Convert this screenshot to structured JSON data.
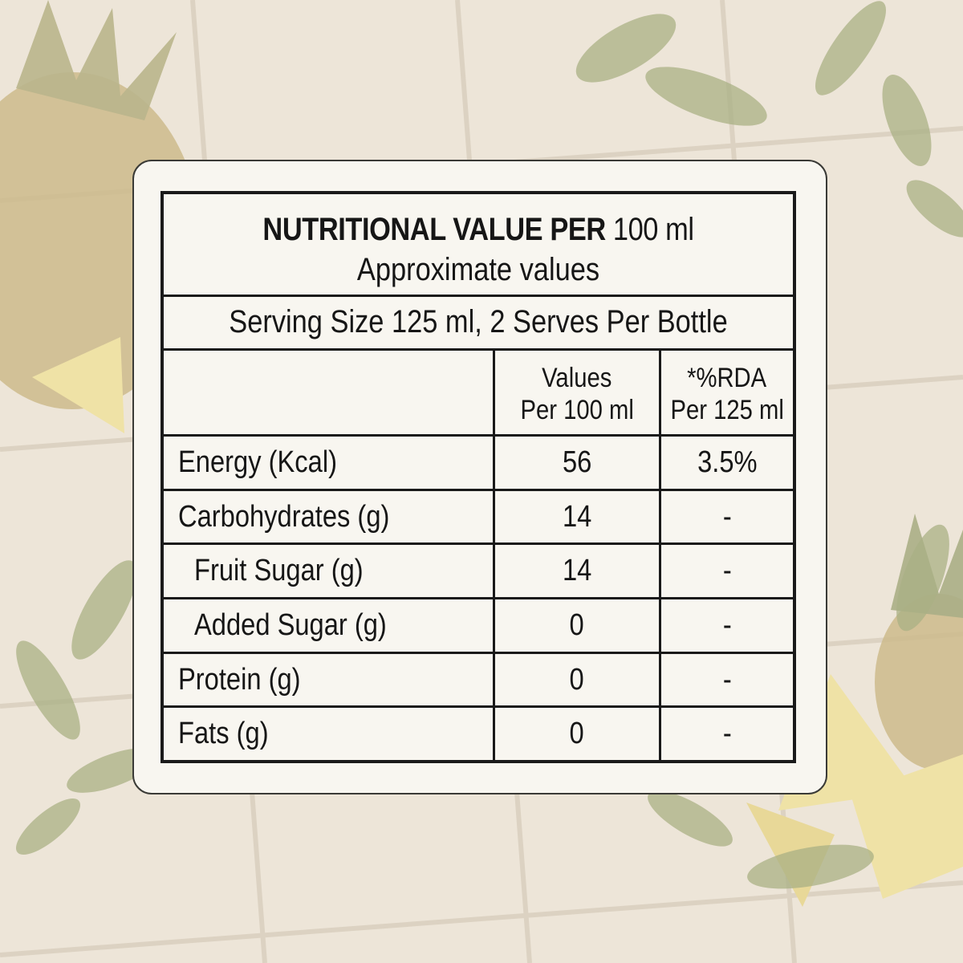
{
  "label": {
    "title_bold": "NUTRITIONAL VALUE PER",
    "title_rest": "100 ml",
    "subtitle": "Approximate values",
    "serving": "Serving Size 125 ml, 2 Serves Per Bottle",
    "columns": [
      {
        "line1": "Values",
        "line2": "Per 100 ml"
      },
      {
        "line1": "*%RDA",
        "line2": "Per 125 ml"
      }
    ],
    "rows": [
      {
        "name": "Energy (Kcal)",
        "value": "56",
        "rda": "3.5%",
        "indent": false
      },
      {
        "name": "Carbohydrates (g)",
        "value": "14",
        "rda": "-",
        "indent": false
      },
      {
        "name": "Fruit Sugar (g)",
        "value": "14",
        "rda": "-",
        "indent": true
      },
      {
        "name": "Added Sugar (g)",
        "value": "0",
        "rda": "-",
        "indent": true
      },
      {
        "name": "Protein (g)",
        "value": "0",
        "rda": "-",
        "indent": false
      },
      {
        "name": "Fats (g)",
        "value": "0",
        "rda": "-",
        "indent": false
      }
    ]
  },
  "background": {
    "tile_color": "#ede5d8",
    "grout_color": "#d9cfbf",
    "leaf_color": "#a8ad83",
    "pineapple_color": "#cdb98a",
    "fruit_color": "#efe2a6"
  }
}
